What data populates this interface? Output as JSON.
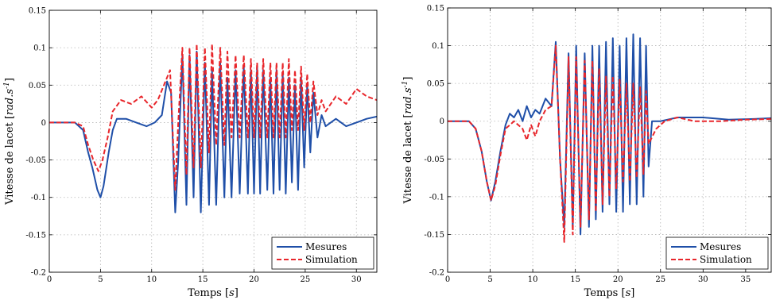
{
  "colors": {
    "mesures": "#1f4fa8",
    "simulation": "#e8262b",
    "grid": "#b4b4b4"
  },
  "chart_data": [
    {
      "type": "line",
      "xlabel": "Temps [s]",
      "ylabel": "Vitesse de lacet [rad.s^-1]",
      "xlim": [
        0,
        32
      ],
      "ylim": [
        -0.2,
        0.15
      ],
      "xticks": [
        "0",
        "5",
        "10",
        "15",
        "20",
        "25",
        "30"
      ],
      "yticks": [
        "0.15",
        "0.1",
        "0.05",
        "0",
        "-0.05",
        "-0.1",
        "-0.15",
        "-0.2"
      ],
      "grid": true,
      "legend": "bottom-right",
      "series": [
        {
          "name": "Mesures",
          "style": "solid",
          "x": [
            0,
            2.5,
            3.3,
            3.8,
            4.2,
            4.7,
            5.0,
            5.3,
            5.8,
            6.2,
            6.6,
            7.5,
            8.5,
            9.5,
            10.3,
            11.0,
            11.5,
            11.9,
            12.3,
            12.6,
            13.0,
            13.4,
            13.7,
            14.1,
            14.4,
            14.8,
            15.2,
            15.6,
            15.9,
            16.3,
            16.7,
            17.1,
            17.4,
            17.8,
            18.2,
            18.6,
            19.0,
            19.4,
            19.7,
            20.0,
            20.3,
            20.6,
            20.9,
            21.3,
            21.6,
            21.9,
            22.2,
            22.5,
            22.8,
            23.1,
            23.4,
            23.7,
            24.0,
            24.3,
            24.6,
            24.9,
            25.2,
            25.5,
            25.8,
            26.2,
            26.6,
            27.0,
            28.0,
            29.0,
            30.0,
            31.0,
            32.0
          ],
          "y": [
            0,
            0,
            -0.01,
            -0.04,
            -0.06,
            -0.09,
            -0.1,
            -0.085,
            -0.04,
            -0.01,
            0.005,
            0.005,
            0,
            -0.005,
            0.0,
            0.01,
            0.055,
            0.04,
            -0.12,
            -0.05,
            0.09,
            -0.11,
            0.09,
            -0.1,
            0.095,
            -0.12,
            0.08,
            -0.11,
            0.07,
            -0.11,
            0.08,
            -0.1,
            0.06,
            -0.1,
            0.07,
            -0.095,
            0.075,
            -0.095,
            0.07,
            -0.095,
            0.075,
            -0.095,
            0.07,
            -0.09,
            0.06,
            -0.095,
            0.07,
            -0.09,
            0.065,
            -0.095,
            0.06,
            -0.08,
            0.05,
            -0.09,
            0.06,
            -0.06,
            0.05,
            -0.04,
            0.04,
            -0.02,
            0.01,
            -0.005,
            0.005,
            -0.005,
            0.0,
            0.005,
            0.008
          ]
        },
        {
          "name": "Simulation",
          "style": "dashed",
          "x": [
            0,
            2.5,
            3.3,
            3.8,
            4.3,
            4.8,
            5.2,
            5.7,
            6.2,
            7.0,
            8.0,
            9.0,
            10.0,
            10.6,
            11.2,
            11.8,
            12.3,
            12.6,
            13.0,
            13.4,
            13.7,
            14.1,
            14.4,
            14.8,
            15.2,
            15.6,
            15.9,
            16.3,
            16.7,
            17.1,
            17.4,
            17.8,
            18.2,
            18.6,
            19.0,
            19.4,
            19.7,
            20.0,
            20.3,
            20.6,
            20.9,
            21.3,
            21.6,
            21.9,
            22.2,
            22.5,
            22.8,
            23.1,
            23.4,
            23.7,
            24.0,
            24.3,
            24.6,
            24.9,
            25.2,
            25.5,
            25.8,
            26.2,
            26.6,
            27.0,
            28.0,
            29.0,
            30.0,
            31.0,
            32.0
          ],
          "y": [
            0,
            0,
            -0.005,
            -0.03,
            -0.05,
            -0.065,
            -0.05,
            -0.02,
            0.015,
            0.03,
            0.025,
            0.035,
            0.02,
            0.03,
            0.05,
            0.07,
            -0.09,
            0.0,
            0.1,
            -0.07,
            0.1,
            -0.06,
            0.105,
            -0.06,
            0.1,
            -0.04,
            0.105,
            -0.03,
            0.1,
            -0.03,
            0.095,
            -0.02,
            0.09,
            -0.02,
            0.09,
            -0.02,
            0.085,
            -0.02,
            0.08,
            -0.02,
            0.085,
            -0.02,
            0.08,
            -0.02,
            0.08,
            -0.02,
            0.08,
            -0.02,
            0.085,
            -0.01,
            0.07,
            -0.01,
            0.075,
            -0.01,
            0.065,
            0.0,
            0.055,
            0.01,
            0.03,
            0.015,
            0.035,
            0.025,
            0.045,
            0.035,
            0.03
          ]
        }
      ]
    },
    {
      "type": "line",
      "xlabel": "Temps [s]",
      "ylabel": "Vitesse de lacet [rad.s^-1]",
      "xlim": [
        0,
        38
      ],
      "ylim": [
        -0.2,
        0.15
      ],
      "xticks": [
        "0",
        "5",
        "10",
        "15",
        "20",
        "25",
        "30",
        "35"
      ],
      "yticks": [
        "0.15",
        "0.1",
        "0.05",
        "0",
        "-0.05",
        "-0.1",
        "-0.15",
        "-0.2"
      ],
      "grid": true,
      "legend": "bottom-right",
      "series": [
        {
          "name": "Mesures",
          "style": "solid",
          "x": [
            0,
            2.5,
            3.3,
            4.0,
            4.6,
            5.1,
            5.6,
            6.2,
            6.8,
            7.3,
            7.8,
            8.3,
            8.8,
            9.3,
            9.8,
            10.3,
            10.8,
            11.5,
            12.2,
            12.7,
            13.2,
            13.7,
            14.2,
            14.7,
            15.1,
            15.6,
            16.1,
            16.6,
            17.0,
            17.4,
            17.8,
            18.2,
            18.6,
            19.0,
            19.4,
            19.8,
            20.2,
            20.6,
            21.0,
            21.4,
            21.8,
            22.2,
            22.6,
            23.0,
            23.3,
            23.6,
            24.0,
            25.0,
            27.0,
            30.0,
            33.0,
            36.0,
            38.0
          ],
          "y": [
            0,
            0,
            -0.01,
            -0.04,
            -0.08,
            -0.105,
            -0.08,
            -0.04,
            -0.005,
            0.01,
            0.005,
            0.015,
            0.0,
            0.02,
            0.005,
            0.015,
            0.01,
            0.03,
            0.02,
            0.105,
            -0.05,
            -0.14,
            0.09,
            -0.14,
            0.1,
            -0.15,
            0.09,
            -0.14,
            0.1,
            -0.13,
            0.1,
            -0.12,
            0.105,
            -0.11,
            0.11,
            -0.12,
            0.1,
            -0.12,
            0.11,
            -0.11,
            0.115,
            -0.11,
            0.11,
            -0.1,
            0.1,
            -0.06,
            0.0,
            0.0,
            0.005,
            0.005,
            0.002,
            0.003,
            0.004
          ]
        },
        {
          "name": "Simulation",
          "style": "dashed",
          "x": [
            0,
            2.5,
            3.3,
            4.0,
            4.6,
            5.1,
            5.6,
            6.2,
            6.8,
            7.3,
            7.8,
            8.3,
            8.8,
            9.3,
            9.8,
            10.3,
            10.8,
            11.5,
            12.2,
            12.7,
            13.2,
            13.7,
            14.2,
            14.7,
            15.1,
            15.6,
            16.1,
            16.6,
            17.0,
            17.4,
            17.8,
            18.2,
            18.6,
            19.0,
            19.4,
            19.8,
            20.2,
            20.6,
            21.0,
            21.4,
            21.8,
            22.2,
            22.6,
            23.0,
            23.3,
            23.6,
            24.5,
            25.5,
            27.0,
            29.0,
            32.0,
            35.0,
            38.0
          ],
          "y": [
            0,
            0,
            -0.01,
            -0.04,
            -0.08,
            -0.105,
            -0.085,
            -0.045,
            -0.01,
            -0.005,
            0.0,
            -0.005,
            -0.01,
            -0.025,
            -0.005,
            -0.02,
            0.0,
            0.015,
            0.02,
            0.1,
            -0.05,
            -0.16,
            0.085,
            -0.15,
            0.085,
            -0.14,
            0.08,
            -0.13,
            0.08,
            -0.12,
            0.07,
            -0.11,
            0.06,
            -0.1,
            0.06,
            -0.09,
            0.055,
            -0.08,
            0.05,
            -0.08,
            0.05,
            -0.075,
            0.045,
            -0.07,
            0.04,
            -0.03,
            -0.01,
            0.0,
            0.005,
            0.0,
            0.0,
            0.002,
            0.003
          ]
        }
      ]
    }
  ]
}
